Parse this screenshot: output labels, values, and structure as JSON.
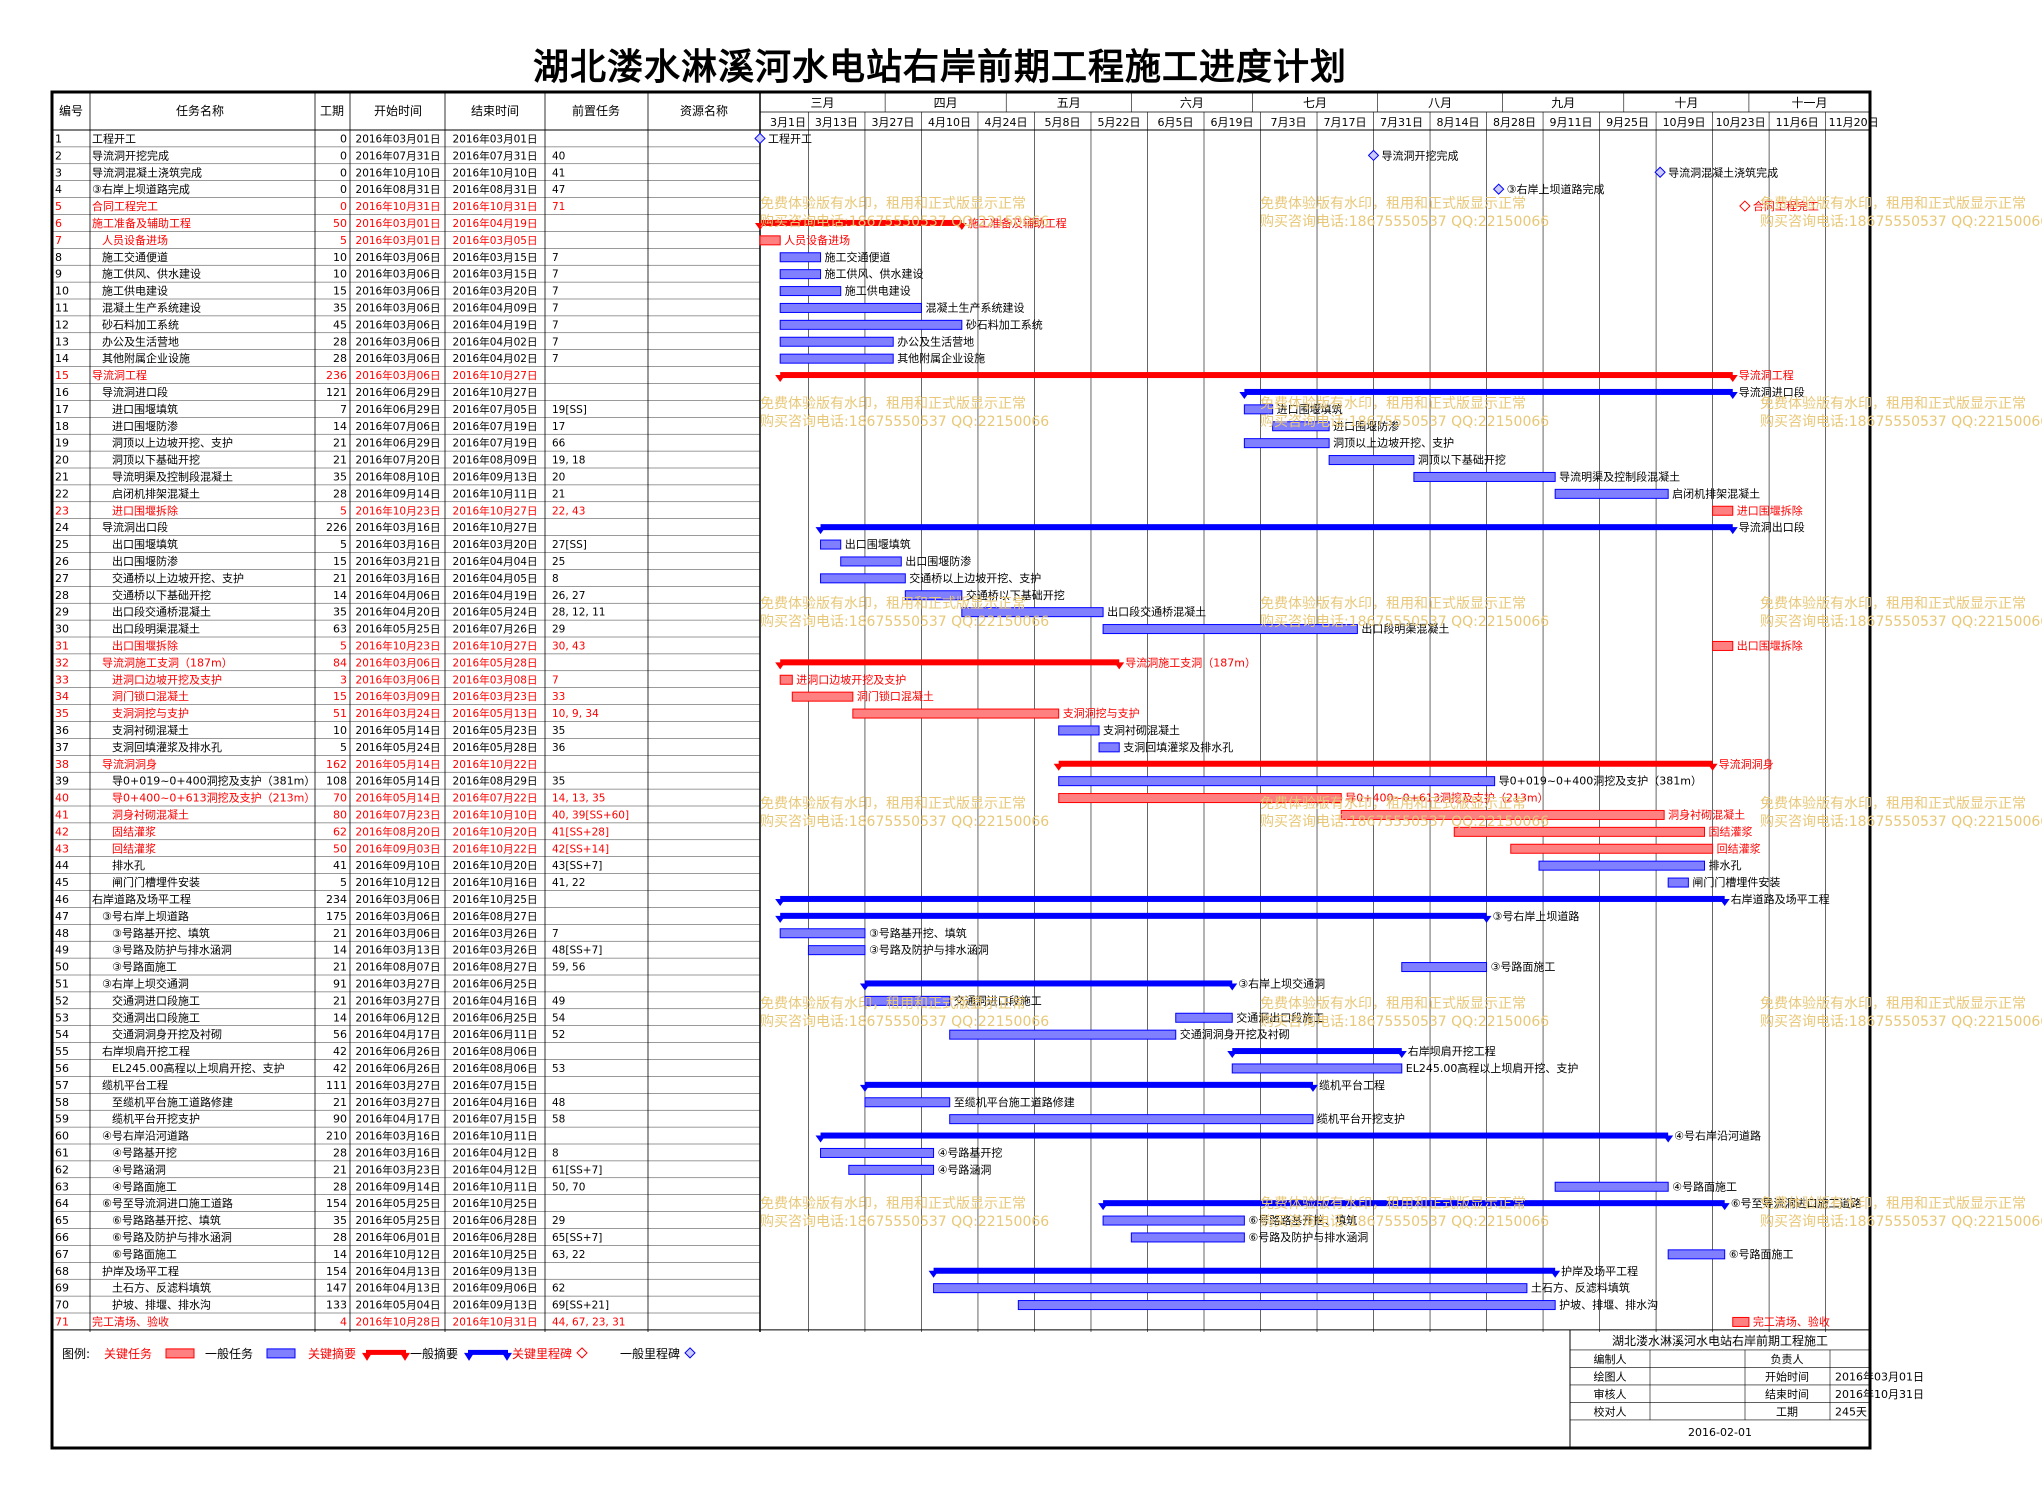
{
  "title": "湖北溇水淋溪河水电站右岸前期工程施工进度计划",
  "columns": [
    "编号",
    "任务名称",
    "工期",
    "开始时间",
    "结束时间",
    "前置任务",
    "资源名称"
  ],
  "months": [
    "三月",
    "四月",
    "五月",
    "六月",
    "七月",
    "八月",
    "九月",
    "十月",
    "十一月"
  ],
  "weeks": [
    "3月1日",
    "3月13日",
    "3月27日",
    "4月10日",
    "4月24日",
    "5月8日",
    "5月22日",
    "6月5日",
    "6月19日",
    "7月3日",
    "7月17日",
    "7月31日",
    "8月14日",
    "8月28日",
    "9月11日",
    "9月25日",
    "10月9日",
    "10月23日",
    "11月6日",
    "11月20日"
  ],
  "watermark": {
    "line1": "免费体验版有水印，租用和正式版显示正常",
    "line2": "购买咨询电话:18675550537 QQ:22150066"
  },
  "legend": {
    "label": "图例:",
    "items": [
      "关键任务",
      "一般任务",
      "关键摘要",
      "一般摘要",
      "关键里程碑",
      "一般里程碑"
    ]
  },
  "info_box": {
    "title": "湖北溇水淋溪河水电站右岸前期工程施工",
    "rows": [
      {
        "k1": "编制人",
        "v1": "",
        "k2": "负责人",
        "v2": ""
      },
      {
        "k1": "绘图人",
        "v1": "",
        "k2": "开始时间",
        "v2": "2016年03月01日"
      },
      {
        "k1": "审核人",
        "v1": "",
        "k2": "结束时间",
        "v2": "2016年10月31日"
      },
      {
        "k1": "校对人",
        "v1": "",
        "k2": "工期",
        "v2": "245天"
      }
    ],
    "date": "2016-02-01"
  },
  "colors": {
    "critical": "#ff0000",
    "normal": "#0000ff",
    "critical_bar": "#ff8080",
    "normal_bar": "#8080ff",
    "watermark": "#e8c878",
    "grid": "#000000"
  },
  "chart_data": {
    "type": "table",
    "x_range": [
      "2016-03-01",
      "2016-11-30"
    ],
    "tasks": [
      {
        "id": "1",
        "name": "工程开工",
        "dur": "0",
        "start": "2016年03月01日",
        "end": "2016年03月01日",
        "pred": "",
        "kind": "ms",
        "crit": false,
        "lvl": 0
      },
      {
        "id": "2",
        "name": "导流洞开挖完成",
        "dur": "0",
        "start": "2016年07月31日",
        "end": "2016年07月31日",
        "pred": "40",
        "kind": "ms",
        "crit": false,
        "lvl": 0
      },
      {
        "id": "3",
        "name": "导流洞混凝土浇筑完成",
        "dur": "0",
        "start": "2016年10月10日",
        "end": "2016年10月10日",
        "pred": "41",
        "kind": "ms",
        "crit": false,
        "lvl": 0
      },
      {
        "id": "4",
        "name": "③右岸上坝道路完成",
        "dur": "0",
        "start": "2016年08月31日",
        "end": "2016年08月31日",
        "pred": "47",
        "kind": "ms",
        "crit": false,
        "lvl": 0
      },
      {
        "id": "5",
        "name": "合同工程完工",
        "dur": "0",
        "start": "2016年10月31日",
        "end": "2016年10月31日",
        "pred": "71",
        "kind": "ms",
        "crit": true,
        "lvl": 0
      },
      {
        "id": "6",
        "name": "施工准备及辅助工程",
        "dur": "50",
        "start": "2016年03月01日",
        "end": "2016年04月19日",
        "pred": "",
        "kind": "sum",
        "crit": true,
        "lvl": 0
      },
      {
        "id": "7",
        "name": "人员设备进场",
        "dur": "5",
        "start": "2016年03月01日",
        "end": "2016年03月05日",
        "pred": "",
        "kind": "task",
        "crit": true,
        "lvl": 1
      },
      {
        "id": "8",
        "name": "施工交通便道",
        "dur": "10",
        "start": "2016年03月06日",
        "end": "2016年03月15日",
        "pred": "7",
        "kind": "task",
        "crit": false,
        "lvl": 1
      },
      {
        "id": "9",
        "name": "施工供风、供水建设",
        "dur": "10",
        "start": "2016年03月06日",
        "end": "2016年03月15日",
        "pred": "7",
        "kind": "task",
        "crit": false,
        "lvl": 1
      },
      {
        "id": "10",
        "name": "施工供电建设",
        "dur": "15",
        "start": "2016年03月06日",
        "end": "2016年03月20日",
        "pred": "7",
        "kind": "task",
        "crit": false,
        "lvl": 1
      },
      {
        "id": "11",
        "name": "混凝土生产系统建设",
        "dur": "35",
        "start": "2016年03月06日",
        "end": "2016年04月09日",
        "pred": "7",
        "kind": "task",
        "crit": false,
        "lvl": 1
      },
      {
        "id": "12",
        "name": "砂石料加工系统",
        "dur": "45",
        "start": "2016年03月06日",
        "end": "2016年04月19日",
        "pred": "7",
        "kind": "task",
        "crit": false,
        "lvl": 1
      },
      {
        "id": "13",
        "name": "办公及生活营地",
        "dur": "28",
        "start": "2016年03月06日",
        "end": "2016年04月02日",
        "pred": "7",
        "kind": "task",
        "crit": false,
        "lvl": 1
      },
      {
        "id": "14",
        "name": "其他附属企业设施",
        "dur": "28",
        "start": "2016年03月06日",
        "end": "2016年04月02日",
        "pred": "7",
        "kind": "task",
        "crit": false,
        "lvl": 1
      },
      {
        "id": "15",
        "name": "导流洞工程",
        "dur": "236",
        "start": "2016年03月06日",
        "end": "2016年10月27日",
        "pred": "",
        "kind": "sum",
        "crit": true,
        "lvl": 0
      },
      {
        "id": "16",
        "name": "导流洞进口段",
        "dur": "121",
        "start": "2016年06月29日",
        "end": "2016年10月27日",
        "pred": "",
        "kind": "sum",
        "crit": false,
        "lvl": 1
      },
      {
        "id": "17",
        "name": "进口围堰填筑",
        "dur": "7",
        "start": "2016年06月29日",
        "end": "2016年07月05日",
        "pred": "19[SS]",
        "kind": "task",
        "crit": false,
        "lvl": 2
      },
      {
        "id": "18",
        "name": "进口围堰防渗",
        "dur": "14",
        "start": "2016年07月06日",
        "end": "2016年07月19日",
        "pred": "17",
        "kind": "task",
        "crit": false,
        "lvl": 2
      },
      {
        "id": "19",
        "name": "洞顶以上边坡开挖、支护",
        "dur": "21",
        "start": "2016年06月29日",
        "end": "2016年07月19日",
        "pred": "66",
        "kind": "task",
        "crit": false,
        "lvl": 2
      },
      {
        "id": "20",
        "name": "洞顶以下基础开挖",
        "dur": "21",
        "start": "2016年07月20日",
        "end": "2016年08月09日",
        "pred": "19, 18",
        "kind": "task",
        "crit": false,
        "lvl": 2
      },
      {
        "id": "21",
        "name": "导流明渠及控制段混凝土",
        "dur": "35",
        "start": "2016年08月10日",
        "end": "2016年09月13日",
        "pred": "20",
        "kind": "task",
        "crit": false,
        "lvl": 2
      },
      {
        "id": "22",
        "name": "启闭机排架混凝土",
        "dur": "28",
        "start": "2016年09月14日",
        "end": "2016年10月11日",
        "pred": "21",
        "kind": "task",
        "crit": false,
        "lvl": 2
      },
      {
        "id": "23",
        "name": "进口围堰拆除",
        "dur": "5",
        "start": "2016年10月23日",
        "end": "2016年10月27日",
        "pred": "22, 43",
        "kind": "task",
        "crit": true,
        "lvl": 2
      },
      {
        "id": "24",
        "name": "导流洞出口段",
        "dur": "226",
        "start": "2016年03月16日",
        "end": "2016年10月27日",
        "pred": "",
        "kind": "sum",
        "crit": false,
        "lvl": 1
      },
      {
        "id": "25",
        "name": "出口围堰填筑",
        "dur": "5",
        "start": "2016年03月16日",
        "end": "2016年03月20日",
        "pred": "27[SS]",
        "kind": "task",
        "crit": false,
        "lvl": 2
      },
      {
        "id": "26",
        "name": "出口围堰防渗",
        "dur": "15",
        "start": "2016年03月21日",
        "end": "2016年04月04日",
        "pred": "25",
        "kind": "task",
        "crit": false,
        "lvl": 2
      },
      {
        "id": "27",
        "name": "交通桥以上边坡开挖、支护",
        "dur": "21",
        "start": "2016年03月16日",
        "end": "2016年04月05日",
        "pred": "8",
        "kind": "task",
        "crit": false,
        "lvl": 2
      },
      {
        "id": "28",
        "name": "交通桥以下基础开挖",
        "dur": "14",
        "start": "2016年04月06日",
        "end": "2016年04月19日",
        "pred": "26, 27",
        "kind": "task",
        "crit": false,
        "lvl": 2
      },
      {
        "id": "29",
        "name": "出口段交通桥混凝土",
        "dur": "35",
        "start": "2016年04月20日",
        "end": "2016年05月24日",
        "pred": "28, 12, 11",
        "kind": "task",
        "crit": false,
        "lvl": 2
      },
      {
        "id": "30",
        "name": "出口段明渠混凝土",
        "dur": "63",
        "start": "2016年05月25日",
        "end": "2016年07月26日",
        "pred": "29",
        "kind": "task",
        "crit": false,
        "lvl": 2
      },
      {
        "id": "31",
        "name": "出口围堰拆除",
        "dur": "5",
        "start": "2016年10月23日",
        "end": "2016年10月27日",
        "pred": "30, 43",
        "kind": "task",
        "crit": true,
        "lvl": 2
      },
      {
        "id": "32",
        "name": "导流洞施工支洞（187m）",
        "dur": "84",
        "start": "2016年03月06日",
        "end": "2016年05月28日",
        "pred": "",
        "kind": "sum",
        "crit": true,
        "lvl": 1
      },
      {
        "id": "33",
        "name": "进洞口边坡开挖及支护",
        "dur": "3",
        "start": "2016年03月06日",
        "end": "2016年03月08日",
        "pred": "7",
        "kind": "task",
        "crit": true,
        "lvl": 2
      },
      {
        "id": "34",
        "name": "洞门锁口混凝土",
        "dur": "15",
        "start": "2016年03月09日",
        "end": "2016年03月23日",
        "pred": "33",
        "kind": "task",
        "crit": true,
        "lvl": 2
      },
      {
        "id": "35",
        "name": "支洞洞挖与支护",
        "dur": "51",
        "start": "2016年03月24日",
        "end": "2016年05月13日",
        "pred": "10, 9, 34",
        "kind": "task",
        "crit": true,
        "lvl": 2
      },
      {
        "id": "36",
        "name": "支洞衬砌混凝土",
        "dur": "10",
        "start": "2016年05月14日",
        "end": "2016年05月23日",
        "pred": "35",
        "kind": "task",
        "crit": false,
        "lvl": 2
      },
      {
        "id": "37",
        "name": "支洞回填灌浆及排水孔",
        "dur": "5",
        "start": "2016年05月24日",
        "end": "2016年05月28日",
        "pred": "36",
        "kind": "task",
        "crit": false,
        "lvl": 2
      },
      {
        "id": "38",
        "name": "导流洞洞身",
        "dur": "162",
        "start": "2016年05月14日",
        "end": "2016年10月22日",
        "pred": "",
        "kind": "sum",
        "crit": true,
        "lvl": 1
      },
      {
        "id": "39",
        "name": "导0+019~0+400洞挖及支护（381m）",
        "dur": "108",
        "start": "2016年05月14日",
        "end": "2016年08月29日",
        "pred": "35",
        "kind": "task",
        "crit": false,
        "lvl": 2
      },
      {
        "id": "40",
        "name": "导0+400~0+613洞挖及支护（213m）",
        "dur": "70",
        "start": "2016年05月14日",
        "end": "2016年07月22日",
        "pred": "14, 13, 35",
        "kind": "task",
        "crit": true,
        "lvl": 2
      },
      {
        "id": "41",
        "name": "洞身衬砌混凝土",
        "dur": "80",
        "start": "2016年07月23日",
        "end": "2016年10月10日",
        "pred": "40, 39[SS+60]",
        "kind": "task",
        "crit": true,
        "lvl": 2
      },
      {
        "id": "42",
        "name": "固结灌浆",
        "dur": "62",
        "start": "2016年08月20日",
        "end": "2016年10月20日",
        "pred": "41[SS+28]",
        "kind": "task",
        "crit": true,
        "lvl": 2
      },
      {
        "id": "43",
        "name": "回结灌浆",
        "dur": "50",
        "start": "2016年09月03日",
        "end": "2016年10月22日",
        "pred": "42[SS+14]",
        "kind": "task",
        "crit": true,
        "lvl": 2
      },
      {
        "id": "44",
        "name": "排水孔",
        "dur": "41",
        "start": "2016年09月10日",
        "end": "2016年10月20日",
        "pred": "43[SS+7]",
        "kind": "task",
        "crit": false,
        "lvl": 2
      },
      {
        "id": "45",
        "name": "闸门门槽埋件安装",
        "dur": "5",
        "start": "2016年10月12日",
        "end": "2016年10月16日",
        "pred": "41, 22",
        "kind": "task",
        "crit": false,
        "lvl": 2
      },
      {
        "id": "46",
        "name": "右岸道路及场平工程",
        "dur": "234",
        "start": "2016年03月06日",
        "end": "2016年10月25日",
        "pred": "",
        "kind": "sum",
        "crit": false,
        "lvl": 0
      },
      {
        "id": "47",
        "name": "③号右岸上坝道路",
        "dur": "175",
        "start": "2016年03月06日",
        "end": "2016年08月27日",
        "pred": "",
        "kind": "sum",
        "crit": false,
        "lvl": 1
      },
      {
        "id": "48",
        "name": "③号路基开挖、填筑",
        "dur": "21",
        "start": "2016年03月06日",
        "end": "2016年03月26日",
        "pred": "7",
        "kind": "task",
        "crit": false,
        "lvl": 2
      },
      {
        "id": "49",
        "name": "③号路及防护与排水涵洞",
        "dur": "14",
        "start": "2016年03月13日",
        "end": "2016年03月26日",
        "pred": "48[SS+7]",
        "kind": "task",
        "crit": false,
        "lvl": 2
      },
      {
        "id": "50",
        "name": "③号路面施工",
        "dur": "21",
        "start": "2016年08月07日",
        "end": "2016年08月27日",
        "pred": "59, 56",
        "kind": "task",
        "crit": false,
        "lvl": 2
      },
      {
        "id": "51",
        "name": "③右岸上坝交通洞",
        "dur": "91",
        "start": "2016年03月27日",
        "end": "2016年06月25日",
        "pred": "",
        "kind": "sum",
        "crit": false,
        "lvl": 1
      },
      {
        "id": "52",
        "name": "交通洞进口段施工",
        "dur": "21",
        "start": "2016年03月27日",
        "end": "2016年04月16日",
        "pred": "49",
        "kind": "task",
        "crit": false,
        "lvl": 2
      },
      {
        "id": "53",
        "name": "交通洞出口段施工",
        "dur": "14",
        "start": "2016年06月12日",
        "end": "2016年06月25日",
        "pred": "54",
        "kind": "task",
        "crit": false,
        "lvl": 2
      },
      {
        "id": "54",
        "name": "交通洞洞身开挖及衬砌",
        "dur": "56",
        "start": "2016年04月17日",
        "end": "2016年06月11日",
        "pred": "52",
        "kind": "task",
        "crit": false,
        "lvl": 2
      },
      {
        "id": "55",
        "name": "右岸坝肩开挖工程",
        "dur": "42",
        "start": "2016年06月26日",
        "end": "2016年08月06日",
        "pred": "",
        "kind": "sum",
        "crit": false,
        "lvl": 1
      },
      {
        "id": "56",
        "name": "EL245.00高程以上坝肩开挖、支护",
        "dur": "42",
        "start": "2016年06月26日",
        "end": "2016年08月06日",
        "pred": "53",
        "kind": "task",
        "crit": false,
        "lvl": 2
      },
      {
        "id": "57",
        "name": "缆机平台工程",
        "dur": "111",
        "start": "2016年03月27日",
        "end": "2016年07月15日",
        "pred": "",
        "kind": "sum",
        "crit": false,
        "lvl": 1
      },
      {
        "id": "58",
        "name": "至缆机平台施工道路修建",
        "dur": "21",
        "start": "2016年03月27日",
        "end": "2016年04月16日",
        "pred": "48",
        "kind": "task",
        "crit": false,
        "lvl": 2
      },
      {
        "id": "59",
        "name": "缆机平台开挖支护",
        "dur": "90",
        "start": "2016年04月17日",
        "end": "2016年07月15日",
        "pred": "58",
        "kind": "task",
        "crit": false,
        "lvl": 2
      },
      {
        "id": "60",
        "name": "④号右岸沿河道路",
        "dur": "210",
        "start": "2016年03月16日",
        "end": "2016年10月11日",
        "pred": "",
        "kind": "sum",
        "crit": false,
        "lvl": 1
      },
      {
        "id": "61",
        "name": "④号路基开挖",
        "dur": "28",
        "start": "2016年03月16日",
        "end": "2016年04月12日",
        "pred": "8",
        "kind": "task",
        "crit": false,
        "lvl": 2
      },
      {
        "id": "62",
        "name": "④号路涵洞",
        "dur": "21",
        "start": "2016年03月23日",
        "end": "2016年04月12日",
        "pred": "61[SS+7]",
        "kind": "task",
        "crit": false,
        "lvl": 2
      },
      {
        "id": "63",
        "name": "④号路面施工",
        "dur": "28",
        "start": "2016年09月14日",
        "end": "2016年10月11日",
        "pred": "50, 70",
        "kind": "task",
        "crit": false,
        "lvl": 2
      },
      {
        "id": "64",
        "name": "⑥号至导流洞进口施工道路",
        "dur": "154",
        "start": "2016年05月25日",
        "end": "2016年10月25日",
        "pred": "",
        "kind": "sum",
        "crit": false,
        "lvl": 1
      },
      {
        "id": "65",
        "name": "⑥号路路基开挖、填筑",
        "dur": "35",
        "start": "2016年05月25日",
        "end": "2016年06月28日",
        "pred": "29",
        "kind": "task",
        "crit": false,
        "lvl": 2
      },
      {
        "id": "66",
        "name": "⑥号路及防护与排水涵洞",
        "dur": "28",
        "start": "2016年06月01日",
        "end": "2016年06月28日",
        "pred": "65[SS+7]",
        "kind": "task",
        "crit": false,
        "lvl": 2
      },
      {
        "id": "67",
        "name": "⑥号路面施工",
        "dur": "14",
        "start": "2016年10月12日",
        "end": "2016年10月25日",
        "pred": "63, 22",
        "kind": "task",
        "crit": false,
        "lvl": 2
      },
      {
        "id": "68",
        "name": "护岸及场平工程",
        "dur": "154",
        "start": "2016年04月13日",
        "end": "2016年09月13日",
        "pred": "",
        "kind": "sum",
        "crit": false,
        "lvl": 1
      },
      {
        "id": "69",
        "name": "土石方、反滤料填筑",
        "dur": "147",
        "start": "2016年04月13日",
        "end": "2016年09月06日",
        "pred": "62",
        "kind": "task",
        "crit": false,
        "lvl": 2
      },
      {
        "id": "70",
        "name": "护坡、排堰、排水沟",
        "dur": "133",
        "start": "2016年05月04日",
        "end": "2016年09月13日",
        "pred": "69[SS+21]",
        "kind": "task",
        "crit": false,
        "lvl": 2
      },
      {
        "id": "71",
        "name": "完工清场、验收",
        "dur": "4",
        "start": "2016年10月28日",
        "end": "2016年10月31日",
        "pred": "44, 67, 23, 31",
        "kind": "task",
        "crit": true,
        "lvl": 0
      }
    ]
  }
}
